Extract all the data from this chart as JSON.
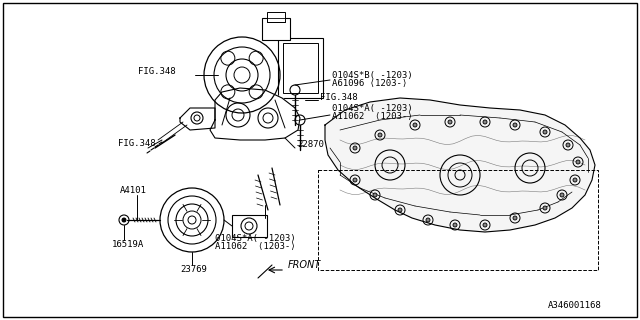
{
  "bg_color": "#ffffff",
  "line_color": "#000000",
  "part_number": "A346001168",
  "labels": {
    "fig348_pump": "FIG.348",
    "fig348_bracket_bolt": "FIG.348",
    "fig348_right_bolt": "FIG.348",
    "bolt_top_right_1": "0104S*B( -1203)",
    "bolt_top_right_2": "A61096 ⟨1203-⟩",
    "bolt_mid_right_1": "0104S*A( -1203)",
    "bolt_mid_right_2": "A11062  ⟨1203-⟩",
    "bracket": "22870",
    "a4101": "A4101",
    "bolt_bot_1": "0104S*A( -1203)",
    "bolt_bot_2": "A11062  ⟨1203-⟩",
    "16519a": "16519A",
    "23769": "23769",
    "front": "FRONT"
  }
}
